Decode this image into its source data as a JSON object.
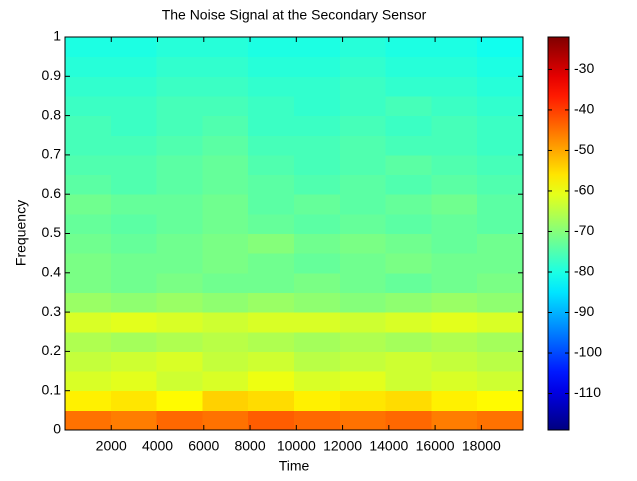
{
  "chart_data": {
    "type": "heatmap",
    "title": "The Noise Signal at the Secondary Sensor",
    "x_label": "Time",
    "y_label": "Frequency",
    "x": [
      990,
      2970,
      4950,
      6930,
      8910,
      10890,
      12870,
      14850,
      16830,
      18810
    ],
    "y": [
      0.025,
      0.075,
      0.125,
      0.175,
      0.225,
      0.275,
      0.325,
      0.375,
      0.425,
      0.475,
      0.525,
      0.575,
      0.625,
      0.675,
      0.725,
      0.775,
      0.825,
      0.875,
      0.925,
      0.975
    ],
    "values": [
      [
        -45,
        -46,
        -44,
        -45,
        -43,
        -44,
        -45,
        -44,
        -46,
        -45
      ],
      [
        -57,
        -56,
        -58,
        -54,
        -55,
        -57,
        -56,
        -55,
        -57,
        -58
      ],
      [
        -62,
        -61,
        -63,
        -62,
        -60,
        -62,
        -61,
        -63,
        -62,
        -63
      ],
      [
        -64,
        -63,
        -62,
        -64,
        -63,
        -65,
        -64,
        -63,
        -64,
        -65
      ],
      [
        -66,
        -67,
        -66,
        -65,
        -66,
        -67,
        -66,
        -67,
        -66,
        -67
      ],
      [
        -62,
        -61,
        -62,
        -63,
        -62,
        -62,
        -63,
        -62,
        -61,
        -62
      ],
      [
        -68,
        -69,
        -68,
        -69,
        -68,
        -69,
        -70,
        -69,
        -68,
        -69
      ],
      [
        -71,
        -72,
        -71,
        -72,
        -72,
        -71,
        -72,
        -73,
        -72,
        -71
      ],
      [
        -71,
        -72,
        -72,
        -71,
        -72,
        -73,
        -72,
        -71,
        -72,
        -72
      ],
      [
        -72,
        -73,
        -72,
        -71,
        -70,
        -72,
        -71,
        -72,
        -73,
        -72
      ],
      [
        -73,
        -74,
        -73,
        -72,
        -73,
        -74,
        -73,
        -74,
        -73,
        -74
      ],
      [
        -72,
        -73,
        -73,
        -72,
        -74,
        -73,
        -74,
        -73,
        -72,
        -74
      ],
      [
        -74,
        -75,
        -74,
        -73,
        -74,
        -75,
        -74,
        -75,
        -74,
        -75
      ],
      [
        -75,
        -75,
        -74,
        -73,
        -75,
        -76,
        -75,
        -74,
        -75,
        -76
      ],
      [
        -76,
        -76,
        -75,
        -74,
        -76,
        -76,
        -75,
        -76,
        -76,
        -77
      ],
      [
        -76,
        -77,
        -76,
        -75,
        -77,
        -77,
        -76,
        -77,
        -76,
        -77
      ],
      [
        -77,
        -77,
        -76,
        -76,
        -77,
        -78,
        -77,
        -76,
        -77,
        -78
      ],
      [
        -78,
        -78,
        -77,
        -77,
        -78,
        -78,
        -77,
        -78,
        -78,
        -79
      ],
      [
        -79,
        -79,
        -78,
        -78,
        -79,
        -79,
        -78,
        -79,
        -79,
        -80
      ],
      [
        -80,
        -80,
        -79,
        -79,
        -80,
        -80,
        -79,
        -80,
        -80,
        -81
      ]
    ],
    "xlim": [
      0,
      19800
    ],
    "xticks": [
      2000,
      4000,
      6000,
      8000,
      10000,
      12000,
      14000,
      16000,
      18000
    ],
    "ylim": [
      0,
      1
    ],
    "yticks": [
      0,
      0.1,
      0.2,
      0.3,
      0.4,
      0.5,
      0.6,
      0.7,
      0.8,
      0.9,
      1
    ],
    "clim": [
      -119,
      -22
    ],
    "cticks": [
      -30,
      -40,
      -50,
      -60,
      -70,
      -80,
      -90,
      -100,
      -110
    ],
    "colormap": "jet"
  }
}
